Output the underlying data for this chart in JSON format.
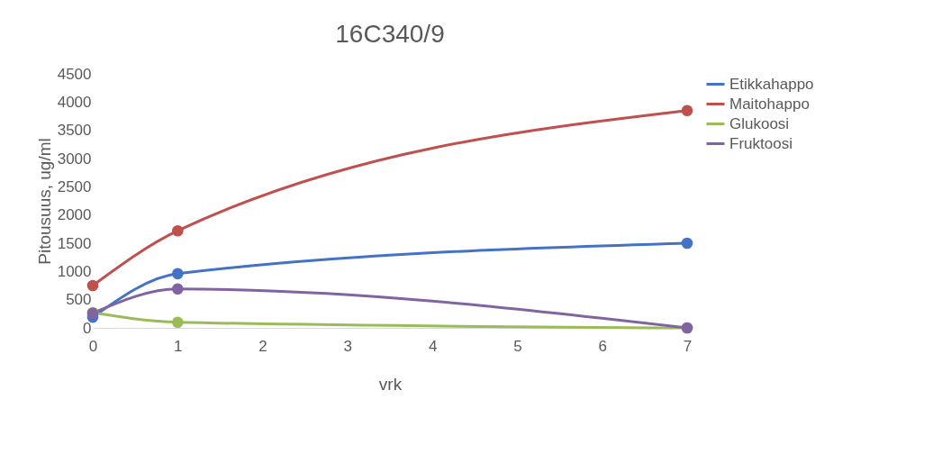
{
  "chart_data": {
    "type": "line",
    "title": "16C340/9",
    "xlabel": "vrk",
    "ylabel": "Pitousuus, ug/ml",
    "x": [
      0,
      1,
      7
    ],
    "series": [
      {
        "name": "Etikkahappo",
        "color": "#4472c4",
        "values": [
          190,
          960,
          1500
        ]
      },
      {
        "name": "Maitohappo",
        "color": "#c0504d",
        "values": [
          750,
          1720,
          3850
        ]
      },
      {
        "name": "Glukoosi",
        "color": "#9bbb59",
        "values": [
          270,
          100,
          0
        ]
      },
      {
        "name": "Fruktoosi",
        "color": "#8064a2",
        "values": [
          260,
          690,
          0
        ]
      }
    ],
    "xlim": [
      0,
      7
    ],
    "xticks": [
      0,
      1,
      2,
      3,
      4,
      5,
      6,
      7
    ],
    "ylim": [
      0,
      4500
    ],
    "yticks": [
      0,
      500,
      1000,
      1500,
      2000,
      2500,
      3000,
      3500,
      4000,
      4500
    ],
    "grid": false,
    "legend": "right",
    "marker": "circle",
    "line_style": "solid"
  }
}
